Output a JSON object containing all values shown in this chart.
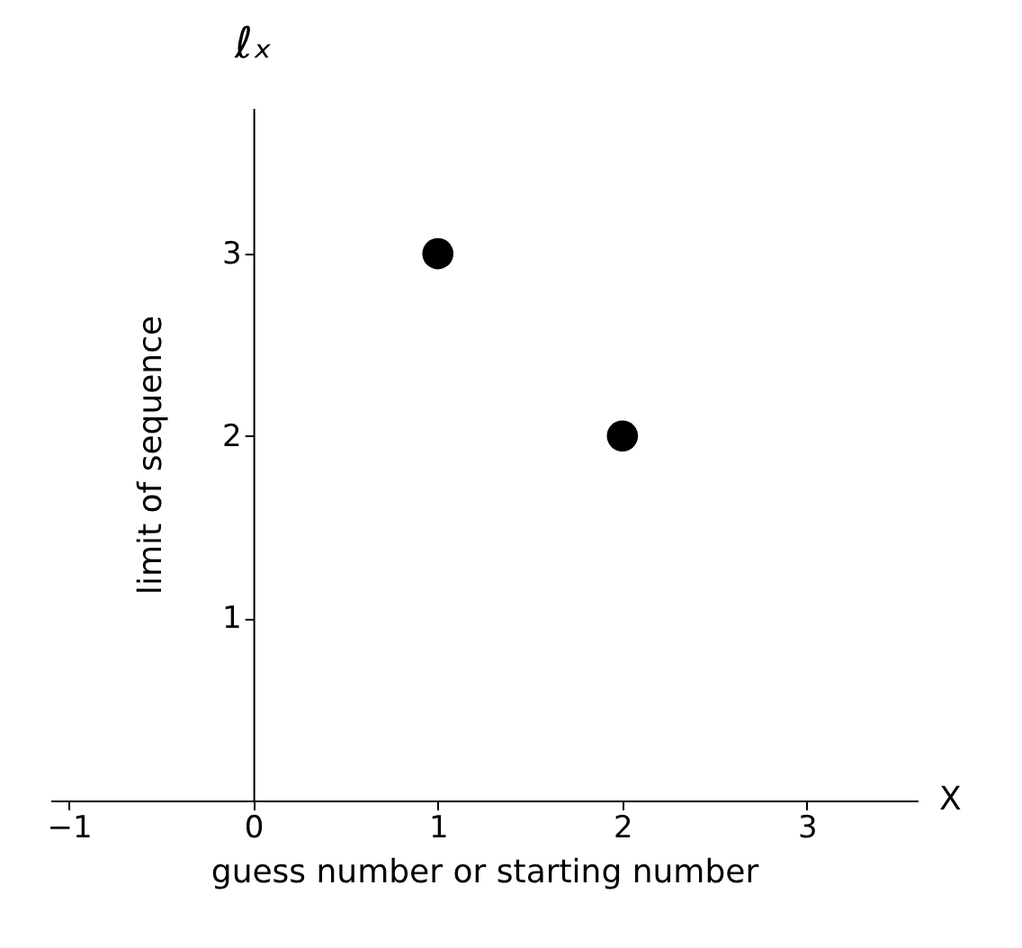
{
  "chart_data": {
    "type": "scatter",
    "xlabel": "guess number or starting number",
    "ylabel": "limit of sequence",
    "annotations": [
      "ℓₓ",
      "X"
    ],
    "x": [
      1,
      2
    ],
    "values": [
      3,
      2
    ],
    "color": "#000000",
    "marker": "circle",
    "xlim": [
      -1.1,
      3.6
    ],
    "ylim": [
      0,
      3.8
    ],
    "xticks": [
      -1,
      0,
      1,
      2,
      3
    ],
    "yticks": [
      1,
      2,
      3
    ],
    "grid": false
  }
}
